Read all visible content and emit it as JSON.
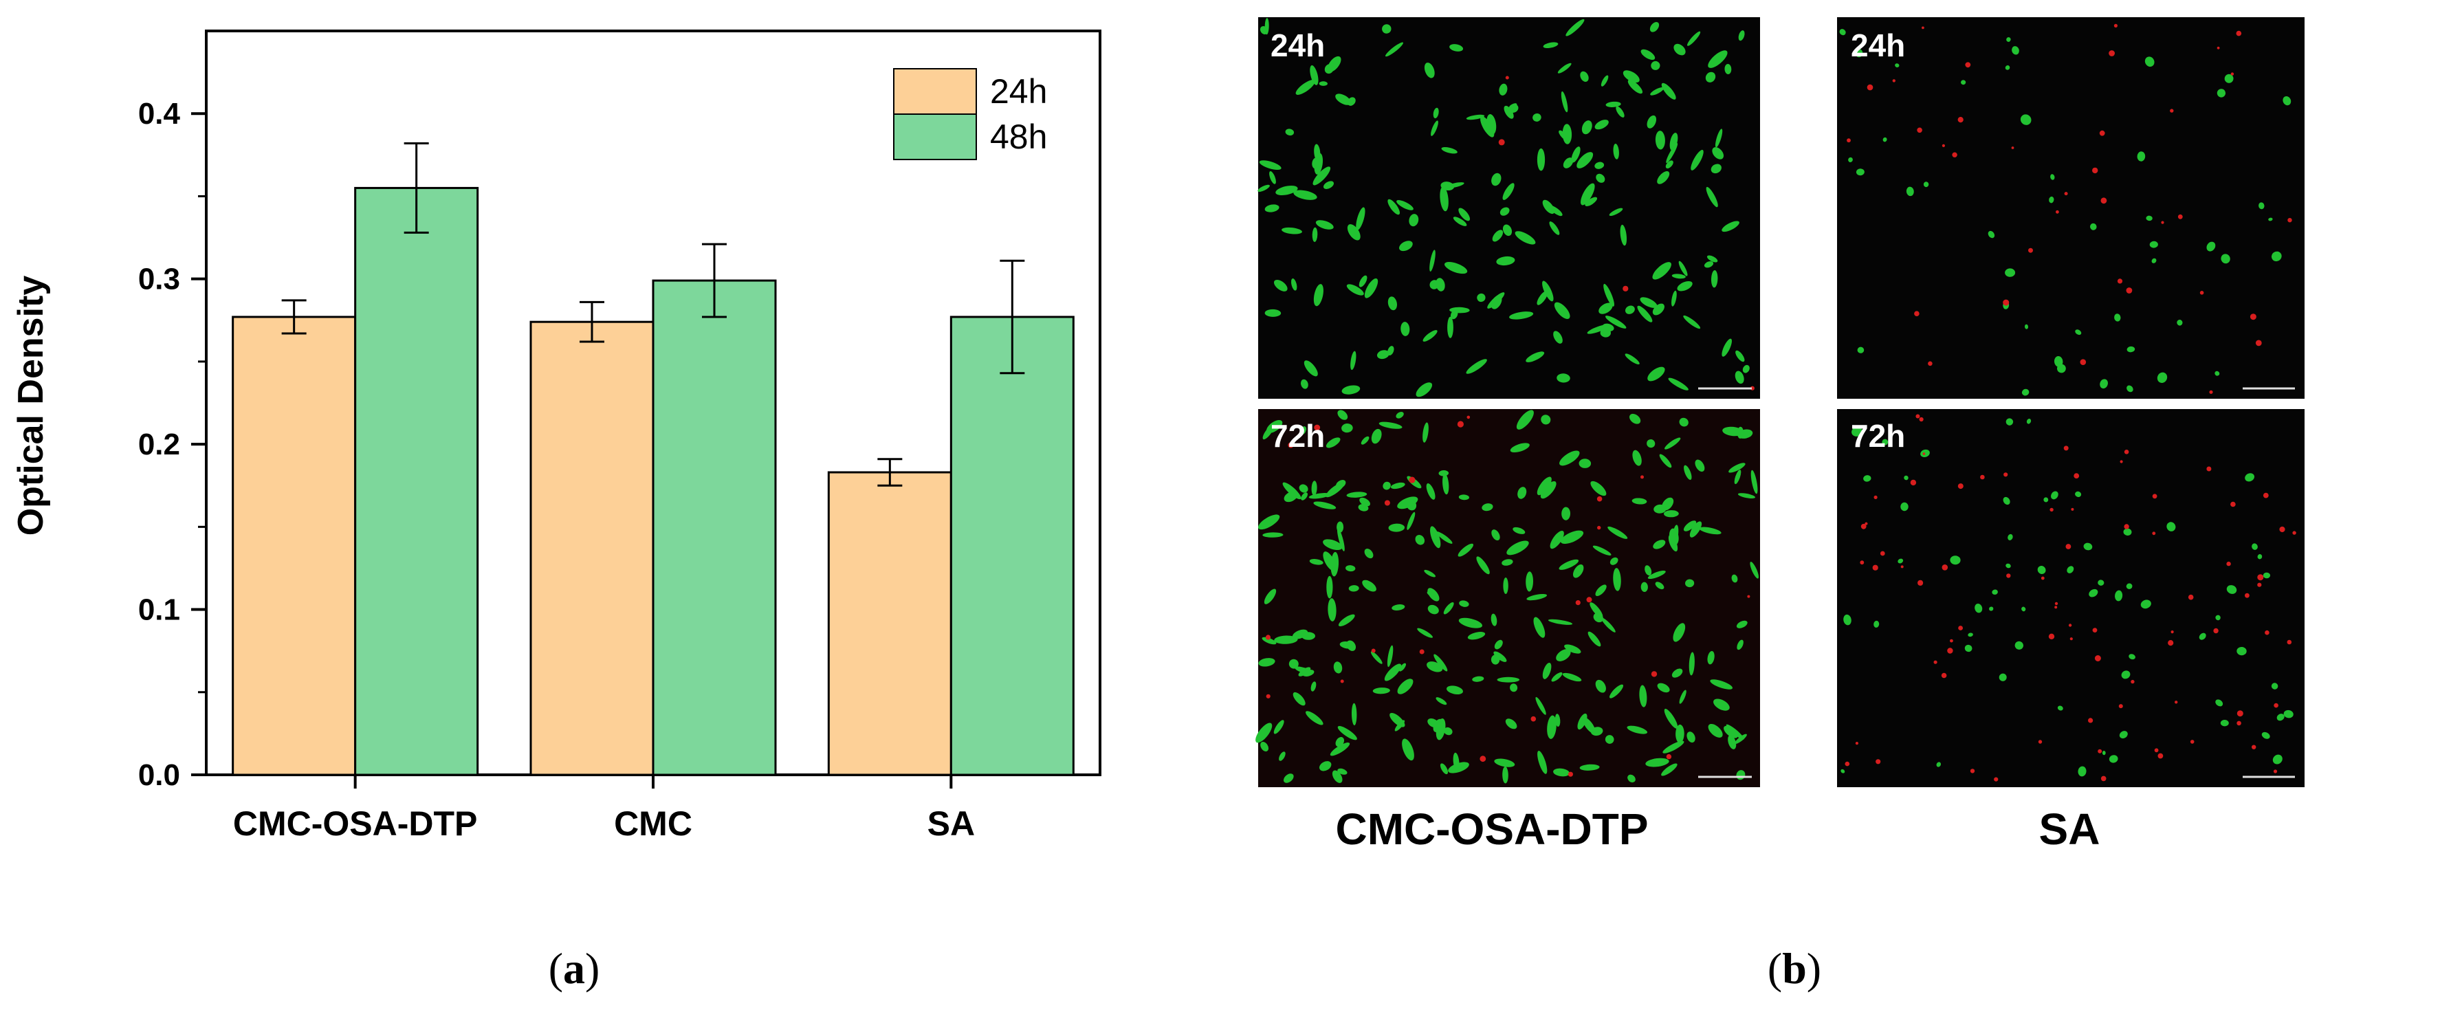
{
  "chart_data": {
    "type": "bar",
    "categories": [
      "CMC-OSA-DTP",
      "CMC",
      "SA"
    ],
    "series": [
      {
        "name": "24h",
        "color": "#FDD097",
        "values": [
          0.277,
          0.274,
          0.183
        ],
        "errors": [
          0.01,
          0.012,
          0.008
        ]
      },
      {
        "name": "48h",
        "color": "#7DD79B",
        "values": [
          0.355,
          0.299,
          0.277
        ],
        "errors": [
          0.027,
          0.022,
          0.034
        ]
      }
    ],
    "ylabel": "Optical Density",
    "xlabel": "",
    "ylim": [
      0.0,
      0.45
    ],
    "yticks": [
      "0.0",
      "0.1",
      "0.2",
      "0.3",
      "0.4"
    ],
    "legend": "top-right",
    "grid": false
  },
  "panel_a_caption": {
    "open": "(",
    "letter": "a",
    "close": ")"
  },
  "panel_b_caption": {
    "open": "(",
    "letter": "b",
    "close": ")"
  },
  "micrographs": {
    "tl_label": "24h",
    "tr_label": "24h",
    "bl_label": "72h",
    "br_label": "72h",
    "col1_label": "CMC-OSA-DTP",
    "col2_label": "SA",
    "colors": {
      "live": "#22c232",
      "dead": "#d81e1e",
      "background": "#050505"
    }
  }
}
